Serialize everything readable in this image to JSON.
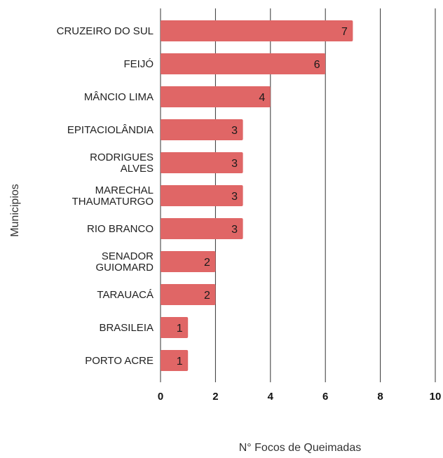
{
  "chart_data": {
    "type": "bar",
    "orientation": "horizontal",
    "categories": [
      "CRUZEIRO DO SUL",
      "FEIJÓ",
      "MÂNCIO LIMA",
      "EPITACIOLÂNDIA",
      "RODRIGUES ALVES",
      "MARECHAL THAUMATURGO",
      "RIO BRANCO",
      "SENADOR GUIOMARD",
      "TARAUACÁ",
      "BRASILEIA",
      "PORTO ACRE"
    ],
    "category_lines": [
      [
        "CRUZEIRO DO SUL"
      ],
      [
        "FEIJÓ"
      ],
      [
        "MÂNCIO LIMA"
      ],
      [
        "EPITACIOLÂNDIA"
      ],
      [
        "RODRIGUES",
        "ALVES"
      ],
      [
        "MARECHAL",
        "THAUMATURGO"
      ],
      [
        "RIO BRANCO"
      ],
      [
        "SENADOR",
        "GUIOMARD"
      ],
      [
        "TARAUACÁ"
      ],
      [
        "BRASILEIA"
      ],
      [
        "PORTO ACRE"
      ]
    ],
    "values": [
      7,
      6,
      4,
      3,
      3,
      3,
      3,
      2,
      2,
      1,
      1
    ],
    "xlabel": "N° Focos de Queimadas",
    "ylabel": "Municipios",
    "xlim": [
      0,
      10
    ],
    "xticks": [
      0,
      2,
      4,
      6,
      8,
      10
    ],
    "grid": true,
    "bar_color": "#e06666",
    "data_labels": true
  }
}
